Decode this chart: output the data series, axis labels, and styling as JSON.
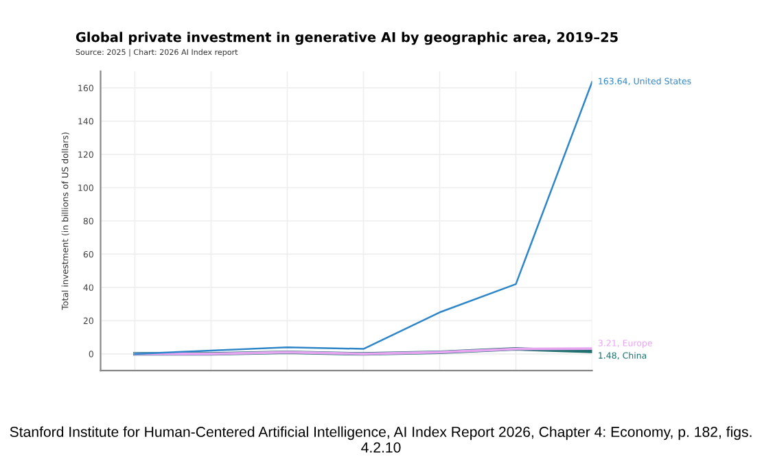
{
  "chart_data": {
    "type": "line",
    "title": "Global private investment in generative AI by geographic area, 2019–25",
    "subtitle": "Source: 2025 | Chart: 2026 AI Index report",
    "ylabel": "Total investment (in billions of US dollars)",
    "categories": [
      null,
      null,
      null,
      null,
      null,
      null,
      null
    ],
    "series": [
      {
        "color": "#2e86c8",
        "values": [
          0,
          2,
          4,
          3,
          25,
          42,
          163.64
        ],
        "value_labels": [
          null,
          null,
          null,
          null,
          null,
          null,
          "163.64, United States"
        ]
      },
      {
        "color": "#e8a6f2",
        "values": [
          0,
          0,
          1,
          0,
          1,
          3,
          3.21
        ],
        "value_labels": [
          null,
          null,
          null,
          null,
          null,
          null,
          "3.21, Europe"
        ]
      },
      {
        "color": "#1f6f6f",
        "values": [
          0,
          0,
          1,
          0,
          1,
          3,
          1.48
        ],
        "value_labels": [
          null,
          null,
          null,
          null,
          null,
          null,
          "1.48, China"
        ]
      }
    ],
    "ylim": [
      -10,
      170
    ],
    "yticks": [
      0,
      20,
      40,
      60,
      80,
      100,
      120,
      140,
      160
    ],
    "grid": true,
    "marker": "none",
    "line_style": "solid",
    "annotations": [
      "Stanford Institute for Human-Centered Artificial Intelligence, AI Index Report 2026, Chapter 4: Economy, p. 182, figs. 4.2.10"
    ]
  }
}
